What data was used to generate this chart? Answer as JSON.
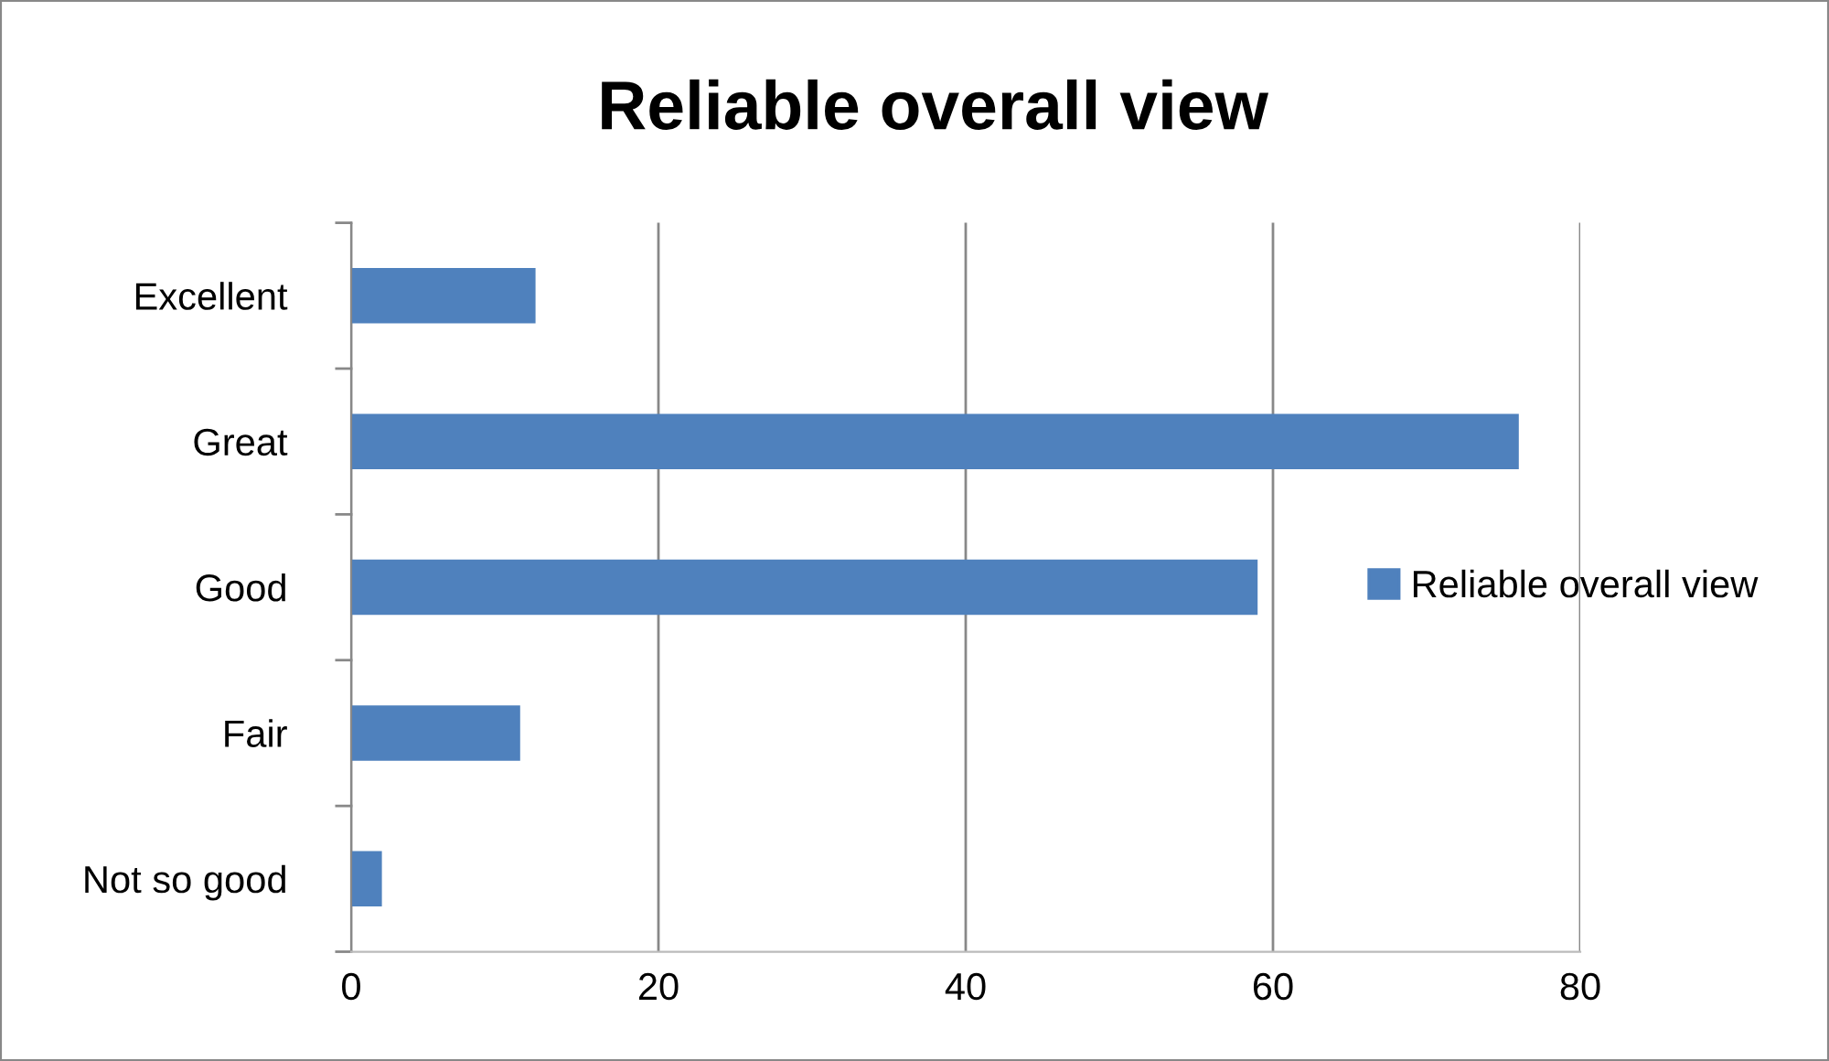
{
  "chart_data": {
    "type": "bar",
    "orientation": "horizontal",
    "title": "Reliable overall view",
    "categories": [
      "Excellent",
      "Great",
      "Good",
      "Fair",
      "Not so good"
    ],
    "series": [
      {
        "name": "Reliable overall view",
        "color": "#4f81bd",
        "values": [
          12,
          76,
          59,
          11,
          2
        ]
      }
    ],
    "xlim": [
      0,
      80
    ],
    "xticks": [
      0,
      20,
      40,
      60,
      80
    ],
    "grid": "x",
    "legend": "right"
  }
}
